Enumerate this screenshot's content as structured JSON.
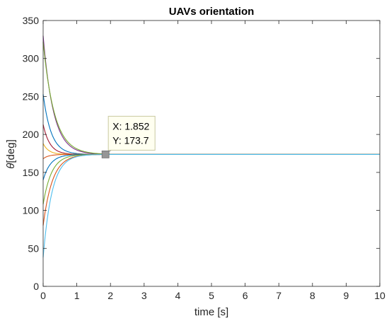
{
  "chart_data": {
    "type": "line",
    "title": "UAVs orientation",
    "xlabel": "time [s]",
    "ylabel_symbol": "θ",
    "ylabel_unit": "[deg]",
    "xlim": [
      0,
      10
    ],
    "ylim": [
      0,
      350
    ],
    "xticks": [
      0,
      1,
      2,
      3,
      4,
      5,
      6,
      7,
      8,
      9,
      10
    ],
    "yticks": [
      0,
      50,
      100,
      150,
      200,
      250,
      300,
      350
    ],
    "grid": false,
    "final_value": 173.7,
    "series": [
      {
        "color": "#7E2F8E",
        "initial": 330,
        "rate": 3.3
      },
      {
        "color": "#77AC30",
        "initial": 322,
        "rate": 3.0
      },
      {
        "color": "#0072BD",
        "initial": 253,
        "rate": 4.2
      },
      {
        "color": "#A2142F",
        "initial": 213,
        "rate": 5.0
      },
      {
        "color": "#EDB120",
        "initial": 188,
        "rate": 6.0
      },
      {
        "color": "#D95319",
        "initial": 168,
        "rate": 6.0
      },
      {
        "color": "#0072BD",
        "initial": 140,
        "rate": 4.5
      },
      {
        "color": "#77AC30",
        "initial": 108,
        "rate": 4.0
      },
      {
        "color": "#D95319",
        "initial": 80,
        "rate": 3.6
      },
      {
        "color": "#4DBEEE",
        "initial": 38,
        "rate": 3.8
      }
    ],
    "datatip": {
      "x": 1.852,
      "y": 173.7,
      "x_text": "X: 1.852",
      "y_text": "Y: 173.7"
    }
  }
}
